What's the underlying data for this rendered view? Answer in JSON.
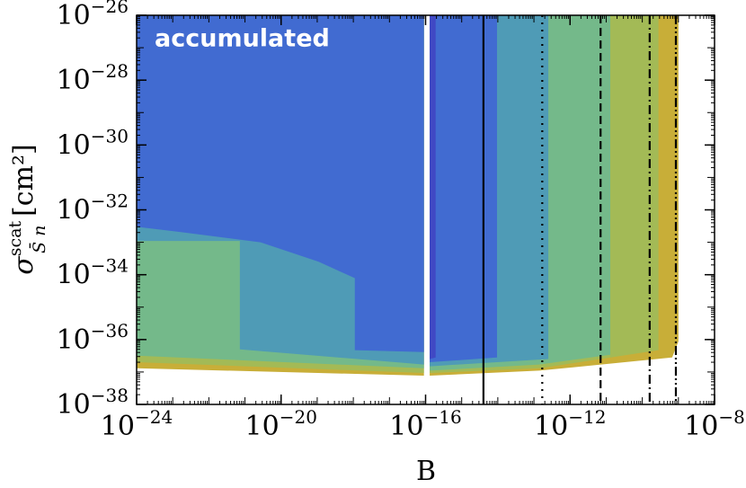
{
  "chart_data": {
    "type": "contour",
    "annotation": "accumulated",
    "xlabel": "B",
    "ylabel": {
      "symbol": "σ",
      "sup": "scat",
      "sub": "S̄ n",
      "unit": " [cm²]"
    },
    "xscale": "log",
    "yscale": "log",
    "xlim": [
      1e-24,
      1e-08
    ],
    "ylim": [
      1e-38,
      1e-26
    ],
    "xticks": [
      {
        "value": 1e-24,
        "label": "10−24"
      },
      {
        "value": 1e-20,
        "label": "10−20"
      },
      {
        "value": 1e-16,
        "label": "10−16"
      },
      {
        "value": 1e-12,
        "label": "10−12"
      },
      {
        "value": 1e-08,
        "label": "10−8"
      }
    ],
    "yticks": [
      {
        "value": 1e-38,
        "label": "10−38"
      },
      {
        "value": 1e-36,
        "label": "10−36"
      },
      {
        "value": 1e-34,
        "label": "10−34"
      },
      {
        "value": 1e-32,
        "label": "10−32"
      },
      {
        "value": 1e-30,
        "label": "10−30"
      },
      {
        "value": 1e-28,
        "label": "10−28"
      },
      {
        "value": 1e-26,
        "label": "10−26"
      }
    ],
    "minor_ticks": true,
    "regions": [
      {
        "color": "#c8ae38",
        "x": [
          1e-24,
          9e-17,
          9e-17,
          1e-24
        ],
        "y": [
          1e-26,
          1e-26,
          7.7e-38,
          1.3e-37
        ]
      },
      {
        "color": "#a3ba56",
        "x": [
          1e-24,
          9e-17,
          9e-17,
          1e-24
        ],
        "y": [
          1e-26,
          1e-26,
          9.3e-38,
          2e-37
        ]
      },
      {
        "color": "#74b98a",
        "x": [
          1e-24,
          9e-17,
          9e-17,
          1e-24
        ],
        "y": [
          1e-26,
          1e-26,
          1.3e-37,
          3.2e-37
        ]
      },
      {
        "color": "#4f9bb6",
        "x": [
          1e-24,
          9e-17,
          9e-17,
          7.2e-22,
          7.2e-22,
          1e-24
        ],
        "y": [
          1e-26,
          1e-26,
          1.7e-37,
          5e-37,
          1.1e-33,
          1.1e-33
        ]
      },
      {
        "color": "#416bd1",
        "x": [
          1e-24,
          9e-17,
          9e-17,
          1.1e-18,
          1.1e-18,
          1.1e-19,
          2.7e-21,
          1.5e-23,
          1e-24
        ],
        "y": [
          1e-26,
          1e-26,
          4.1e-37,
          4.7e-37,
          7.8e-35,
          2.5e-34,
          1e-33,
          2.1e-33,
          3e-33
        ]
      },
      {
        "color": "#c8ae38",
        "x": [
          1.3e-16,
          1e-09,
          1e-09,
          6.7e-10,
          1.4e-13,
          1.3e-16
        ],
        "y": [
          1e-26,
          1e-26,
          8.8e-37,
          2.8e-37,
          1.1e-37,
          7.7e-38
        ]
      },
      {
        "color": "#a3ba56",
        "x": [
          1.3e-16,
          2.8e-10,
          2.8e-10,
          1.4e-13,
          1.3e-16
        ],
        "y": [
          1e-26,
          1e-26,
          4.7e-37,
          1.3e-37,
          9.3e-38
        ]
      },
      {
        "color": "#74b98a",
        "x": [
          1.3e-16,
          1.3e-11,
          1.3e-11,
          1.4e-13,
          1.3e-16
        ],
        "y": [
          1e-26,
          1e-26,
          3.4e-37,
          1.7e-37,
          1.1e-37
        ]
      },
      {
        "color": "#4f9bb6",
        "x": [
          1.3e-16,
          2.5e-13,
          2.5e-13,
          1.3e-16
        ],
        "y": [
          1e-26,
          1e-26,
          2.5e-37,
          1.5e-37
        ]
      },
      {
        "color": "#416bd1",
        "x": [
          1.3e-16,
          9.5e-15,
          9.5e-15,
          1.3e-16
        ],
        "y": [
          1e-26,
          1e-26,
          2.8e-37,
          2e-37
        ]
      },
      {
        "color": "#4048c4",
        "x": [
          1.3e-16,
          1.9e-16,
          1.9e-16,
          1.3e-16
        ],
        "y": [
          1e-26,
          1e-26,
          2.8e-37,
          2.5e-37
        ]
      }
    ],
    "vlines": [
      {
        "x": 4e-15,
        "style": "solid"
      },
      {
        "x": 1.7e-13,
        "style": "dotted"
      },
      {
        "x": 7e-12,
        "style": "dashed"
      },
      {
        "x": 1.6e-10,
        "style": "dashdot"
      },
      {
        "x": 8.5e-10,
        "style": "dashdotdot"
      }
    ]
  }
}
